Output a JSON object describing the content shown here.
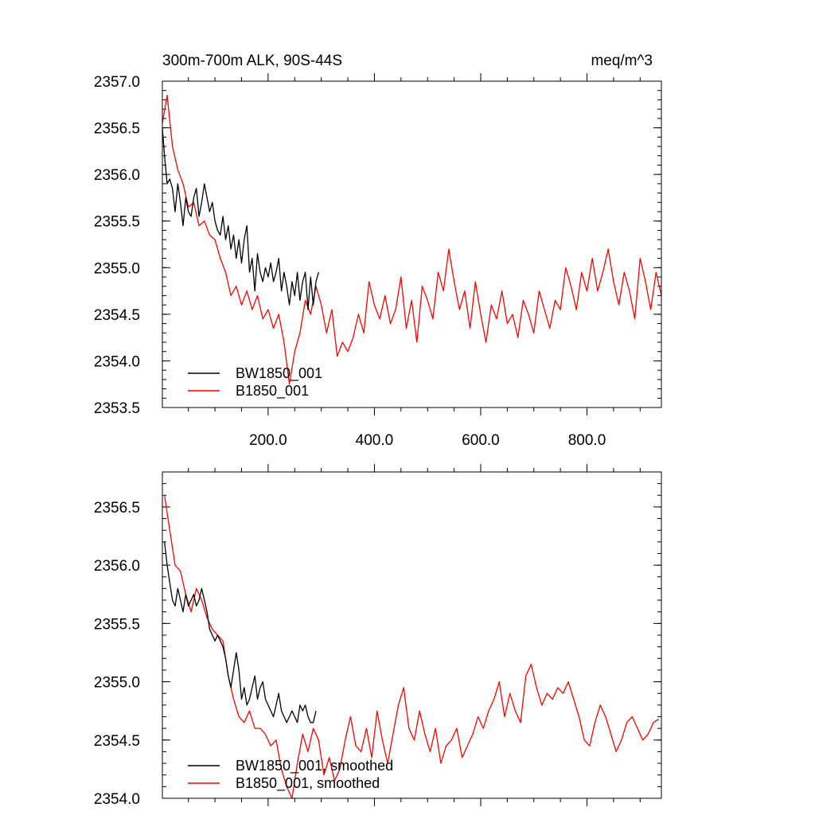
{
  "figure": {
    "title_left": "300m-700m ALK, 90S-44S",
    "title_right": "meq/m^3"
  },
  "chart_data": [
    {
      "type": "line",
      "title": "300m-700m ALK, 90S-44S",
      "units": "meq/m^3",
      "xlabel": "",
      "ylabel": "",
      "xlim": [
        1,
        940
      ],
      "ylim": [
        2353.5,
        2357.0
      ],
      "xticks": [
        200,
        400,
        600,
        800
      ],
      "xtick_labels": [
        "200.0",
        "400.0",
        "600.0",
        "800.0"
      ],
      "yticks": [
        2353.5,
        2354.0,
        2354.5,
        2355.0,
        2355.5,
        2356.0,
        2356.5,
        2357.0
      ],
      "ytick_labels": [
        "2353.5",
        "2354.0",
        "2354.5",
        "2355.0",
        "2355.5",
        "2356.0",
        "2356.5",
        "2357.0"
      ],
      "grid": false,
      "legend_position": "bottom-left",
      "series": [
        {
          "name": "BW1850_001",
          "color": "#000000",
          "x": [
            1,
            5,
            10,
            15,
            20,
            25,
            30,
            35,
            40,
            45,
            50,
            55,
            60,
            65,
            70,
            75,
            80,
            85,
            90,
            95,
            100,
            105,
            110,
            115,
            120,
            125,
            130,
            135,
            140,
            145,
            150,
            155,
            160,
            165,
            170,
            175,
            180,
            185,
            190,
            195,
            200,
            205,
            210,
            215,
            220,
            225,
            230,
            235,
            240,
            245,
            250,
            255,
            260,
            265,
            270,
            275,
            280,
            285,
            290,
            295
          ],
          "values": [
            2356.5,
            2356.2,
            2355.9,
            2355.95,
            2355.85,
            2355.6,
            2355.9,
            2355.7,
            2355.45,
            2355.75,
            2355.6,
            2355.55,
            2355.75,
            2355.85,
            2355.55,
            2355.7,
            2355.9,
            2355.75,
            2355.6,
            2355.7,
            2355.5,
            2355.4,
            2355.35,
            2355.55,
            2355.3,
            2355.45,
            2355.2,
            2355.35,
            2355.1,
            2355.3,
            2355.05,
            2355.3,
            2355.45,
            2354.95,
            2355.1,
            2354.75,
            2355.15,
            2354.95,
            2354.85,
            2355.0,
            2354.9,
            2355.05,
            2354.85,
            2354.95,
            2355.1,
            2354.75,
            2354.95,
            2354.8,
            2354.6,
            2354.85,
            2354.7,
            2354.95,
            2354.65,
            2354.85,
            2354.95,
            2354.55,
            2354.9,
            2354.6,
            2354.85,
            2354.95
          ]
        },
        {
          "name": "B1850_001",
          "color": "#ff0000",
          "x": [
            1,
            10,
            20,
            30,
            40,
            50,
            60,
            70,
            80,
            90,
            100,
            110,
            120,
            130,
            140,
            150,
            160,
            170,
            180,
            190,
            200,
            210,
            220,
            230,
            240,
            250,
            260,
            270,
            280,
            290,
            300,
            310,
            320,
            330,
            340,
            350,
            360,
            370,
            380,
            390,
            400,
            410,
            420,
            430,
            440,
            450,
            460,
            470,
            480,
            490,
            500,
            510,
            520,
            530,
            540,
            550,
            560,
            570,
            580,
            590,
            600,
            610,
            620,
            630,
            640,
            650,
            660,
            670,
            680,
            690,
            700,
            710,
            720,
            730,
            740,
            750,
            760,
            770,
            780,
            790,
            800,
            810,
            820,
            830,
            840,
            850,
            860,
            870,
            880,
            890,
            900,
            910,
            920,
            930,
            940
          ],
          "values": [
            2356.55,
            2356.85,
            2356.3,
            2356.05,
            2355.9,
            2355.65,
            2355.7,
            2355.45,
            2355.5,
            2355.35,
            2355.3,
            2355.1,
            2354.95,
            2354.7,
            2354.8,
            2354.6,
            2354.75,
            2354.55,
            2354.7,
            2354.45,
            2354.55,
            2354.35,
            2354.5,
            2354.2,
            2353.75,
            2354.1,
            2354.3,
            2354.65,
            2354.5,
            2354.8,
            2354.6,
            2354.3,
            2354.55,
            2354.05,
            2354.2,
            2354.1,
            2354.25,
            2354.5,
            2354.3,
            2354.85,
            2354.6,
            2354.45,
            2354.7,
            2354.4,
            2354.55,
            2354.9,
            2354.35,
            2354.65,
            2354.2,
            2354.8,
            2354.65,
            2354.45,
            2354.95,
            2354.75,
            2355.2,
            2354.85,
            2354.55,
            2354.75,
            2354.35,
            2354.85,
            2354.5,
            2354.2,
            2354.6,
            2354.45,
            2354.75,
            2354.4,
            2354.5,
            2354.25,
            2354.65,
            2354.5,
            2354.3,
            2354.75,
            2354.55,
            2354.35,
            2354.65,
            2354.55,
            2355.0,
            2354.8,
            2354.55,
            2354.95,
            2354.75,
            2355.1,
            2354.75,
            2354.95,
            2355.2,
            2354.85,
            2354.6,
            2354.95,
            2354.75,
            2354.45,
            2355.1,
            2354.85,
            2354.55,
            2354.95,
            2354.7
          ]
        }
      ]
    },
    {
      "type": "line",
      "title": "",
      "xlabel": "",
      "ylabel": "",
      "xlim": [
        1,
        940
      ],
      "ylim": [
        2354.0,
        2356.8
      ],
      "xticks": [
        200,
        400,
        600,
        800
      ],
      "xtick_labels": [],
      "yticks": [
        2354.0,
        2354.5,
        2355.0,
        2355.5,
        2356.0,
        2356.5
      ],
      "ytick_labels": [
        "2354.0",
        "2354.5",
        "2355.0",
        "2355.5",
        "2356.0",
        "2356.5"
      ],
      "grid": false,
      "legend_position": "bottom-left",
      "series": [
        {
          "name": "BW1850_001, smoothed",
          "color": "#000000",
          "x": [
            5,
            10,
            15,
            20,
            25,
            30,
            35,
            40,
            45,
            50,
            55,
            60,
            65,
            70,
            75,
            80,
            85,
            90,
            95,
            100,
            105,
            110,
            115,
            120,
            125,
            130,
            135,
            140,
            145,
            150,
            155,
            160,
            165,
            170,
            175,
            180,
            185,
            190,
            195,
            200,
            205,
            210,
            215,
            220,
            225,
            230,
            235,
            240,
            245,
            250,
            255,
            260,
            265,
            270,
            275,
            280,
            285,
            290
          ],
          "values": [
            2356.2,
            2356.0,
            2355.85,
            2355.7,
            2355.65,
            2355.8,
            2355.7,
            2355.6,
            2355.75,
            2355.65,
            2355.7,
            2355.75,
            2355.65,
            2355.7,
            2355.8,
            2355.7,
            2355.6,
            2355.45,
            2355.4,
            2355.35,
            2355.4,
            2355.35,
            2355.3,
            2355.2,
            2355.05,
            2354.95,
            2355.1,
            2355.25,
            2355.1,
            2354.85,
            2354.95,
            2354.8,
            2354.85,
            2354.95,
            2355.05,
            2354.85,
            2354.95,
            2355.0,
            2354.85,
            2354.8,
            2354.75,
            2354.7,
            2354.8,
            2354.9,
            2354.75,
            2354.7,
            2354.65,
            2354.7,
            2354.75,
            2354.7,
            2354.65,
            2354.8,
            2354.75,
            2354.8,
            2354.7,
            2354.65,
            2354.65,
            2354.75
          ]
        },
        {
          "name": "B1850_001, smoothed",
          "color": "#ff0000",
          "x": [
            5,
            15,
            25,
            35,
            45,
            55,
            65,
            75,
            85,
            95,
            105,
            115,
            125,
            135,
            145,
            155,
            165,
            175,
            185,
            195,
            205,
            215,
            225,
            235,
            245,
            255,
            265,
            275,
            285,
            295,
            305,
            315,
            325,
            335,
            345,
            355,
            365,
            375,
            385,
            395,
            405,
            415,
            425,
            435,
            445,
            455,
            465,
            475,
            485,
            495,
            505,
            515,
            525,
            535,
            545,
            555,
            565,
            575,
            585,
            595,
            605,
            615,
            625,
            635,
            645,
            655,
            665,
            675,
            685,
            695,
            705,
            715,
            725,
            735,
            745,
            755,
            765,
            775,
            785,
            795,
            805,
            815,
            825,
            835,
            845,
            855,
            865,
            875,
            885,
            895,
            905,
            915,
            925,
            935
          ],
          "values": [
            2356.6,
            2356.3,
            2356.0,
            2355.95,
            2355.75,
            2355.6,
            2355.8,
            2355.7,
            2355.55,
            2355.45,
            2355.4,
            2355.35,
            2355.05,
            2354.85,
            2354.7,
            2354.65,
            2354.75,
            2354.6,
            2354.6,
            2354.55,
            2354.45,
            2354.5,
            2354.25,
            2354.1,
            2354.0,
            2354.3,
            2354.55,
            2354.4,
            2354.6,
            2354.5,
            2354.2,
            2354.35,
            2354.15,
            2354.25,
            2354.5,
            2354.7,
            2354.45,
            2354.4,
            2354.6,
            2354.35,
            2354.75,
            2354.5,
            2354.3,
            2354.55,
            2354.8,
            2354.95,
            2354.6,
            2354.5,
            2354.75,
            2354.55,
            2354.4,
            2354.6,
            2354.3,
            2354.45,
            2354.5,
            2354.6,
            2354.35,
            2354.45,
            2354.55,
            2354.7,
            2354.6,
            2354.75,
            2354.85,
            2355.0,
            2354.7,
            2354.9,
            2354.75,
            2354.65,
            2355.05,
            2355.15,
            2354.95,
            2354.8,
            2354.9,
            2354.85,
            2354.95,
            2354.9,
            2355.0,
            2354.85,
            2354.7,
            2354.5,
            2354.45,
            2354.65,
            2354.8,
            2354.7,
            2354.55,
            2354.4,
            2354.5,
            2354.65,
            2354.7,
            2354.6,
            2354.5,
            2354.55,
            2354.65,
            2354.68
          ]
        }
      ]
    }
  ]
}
